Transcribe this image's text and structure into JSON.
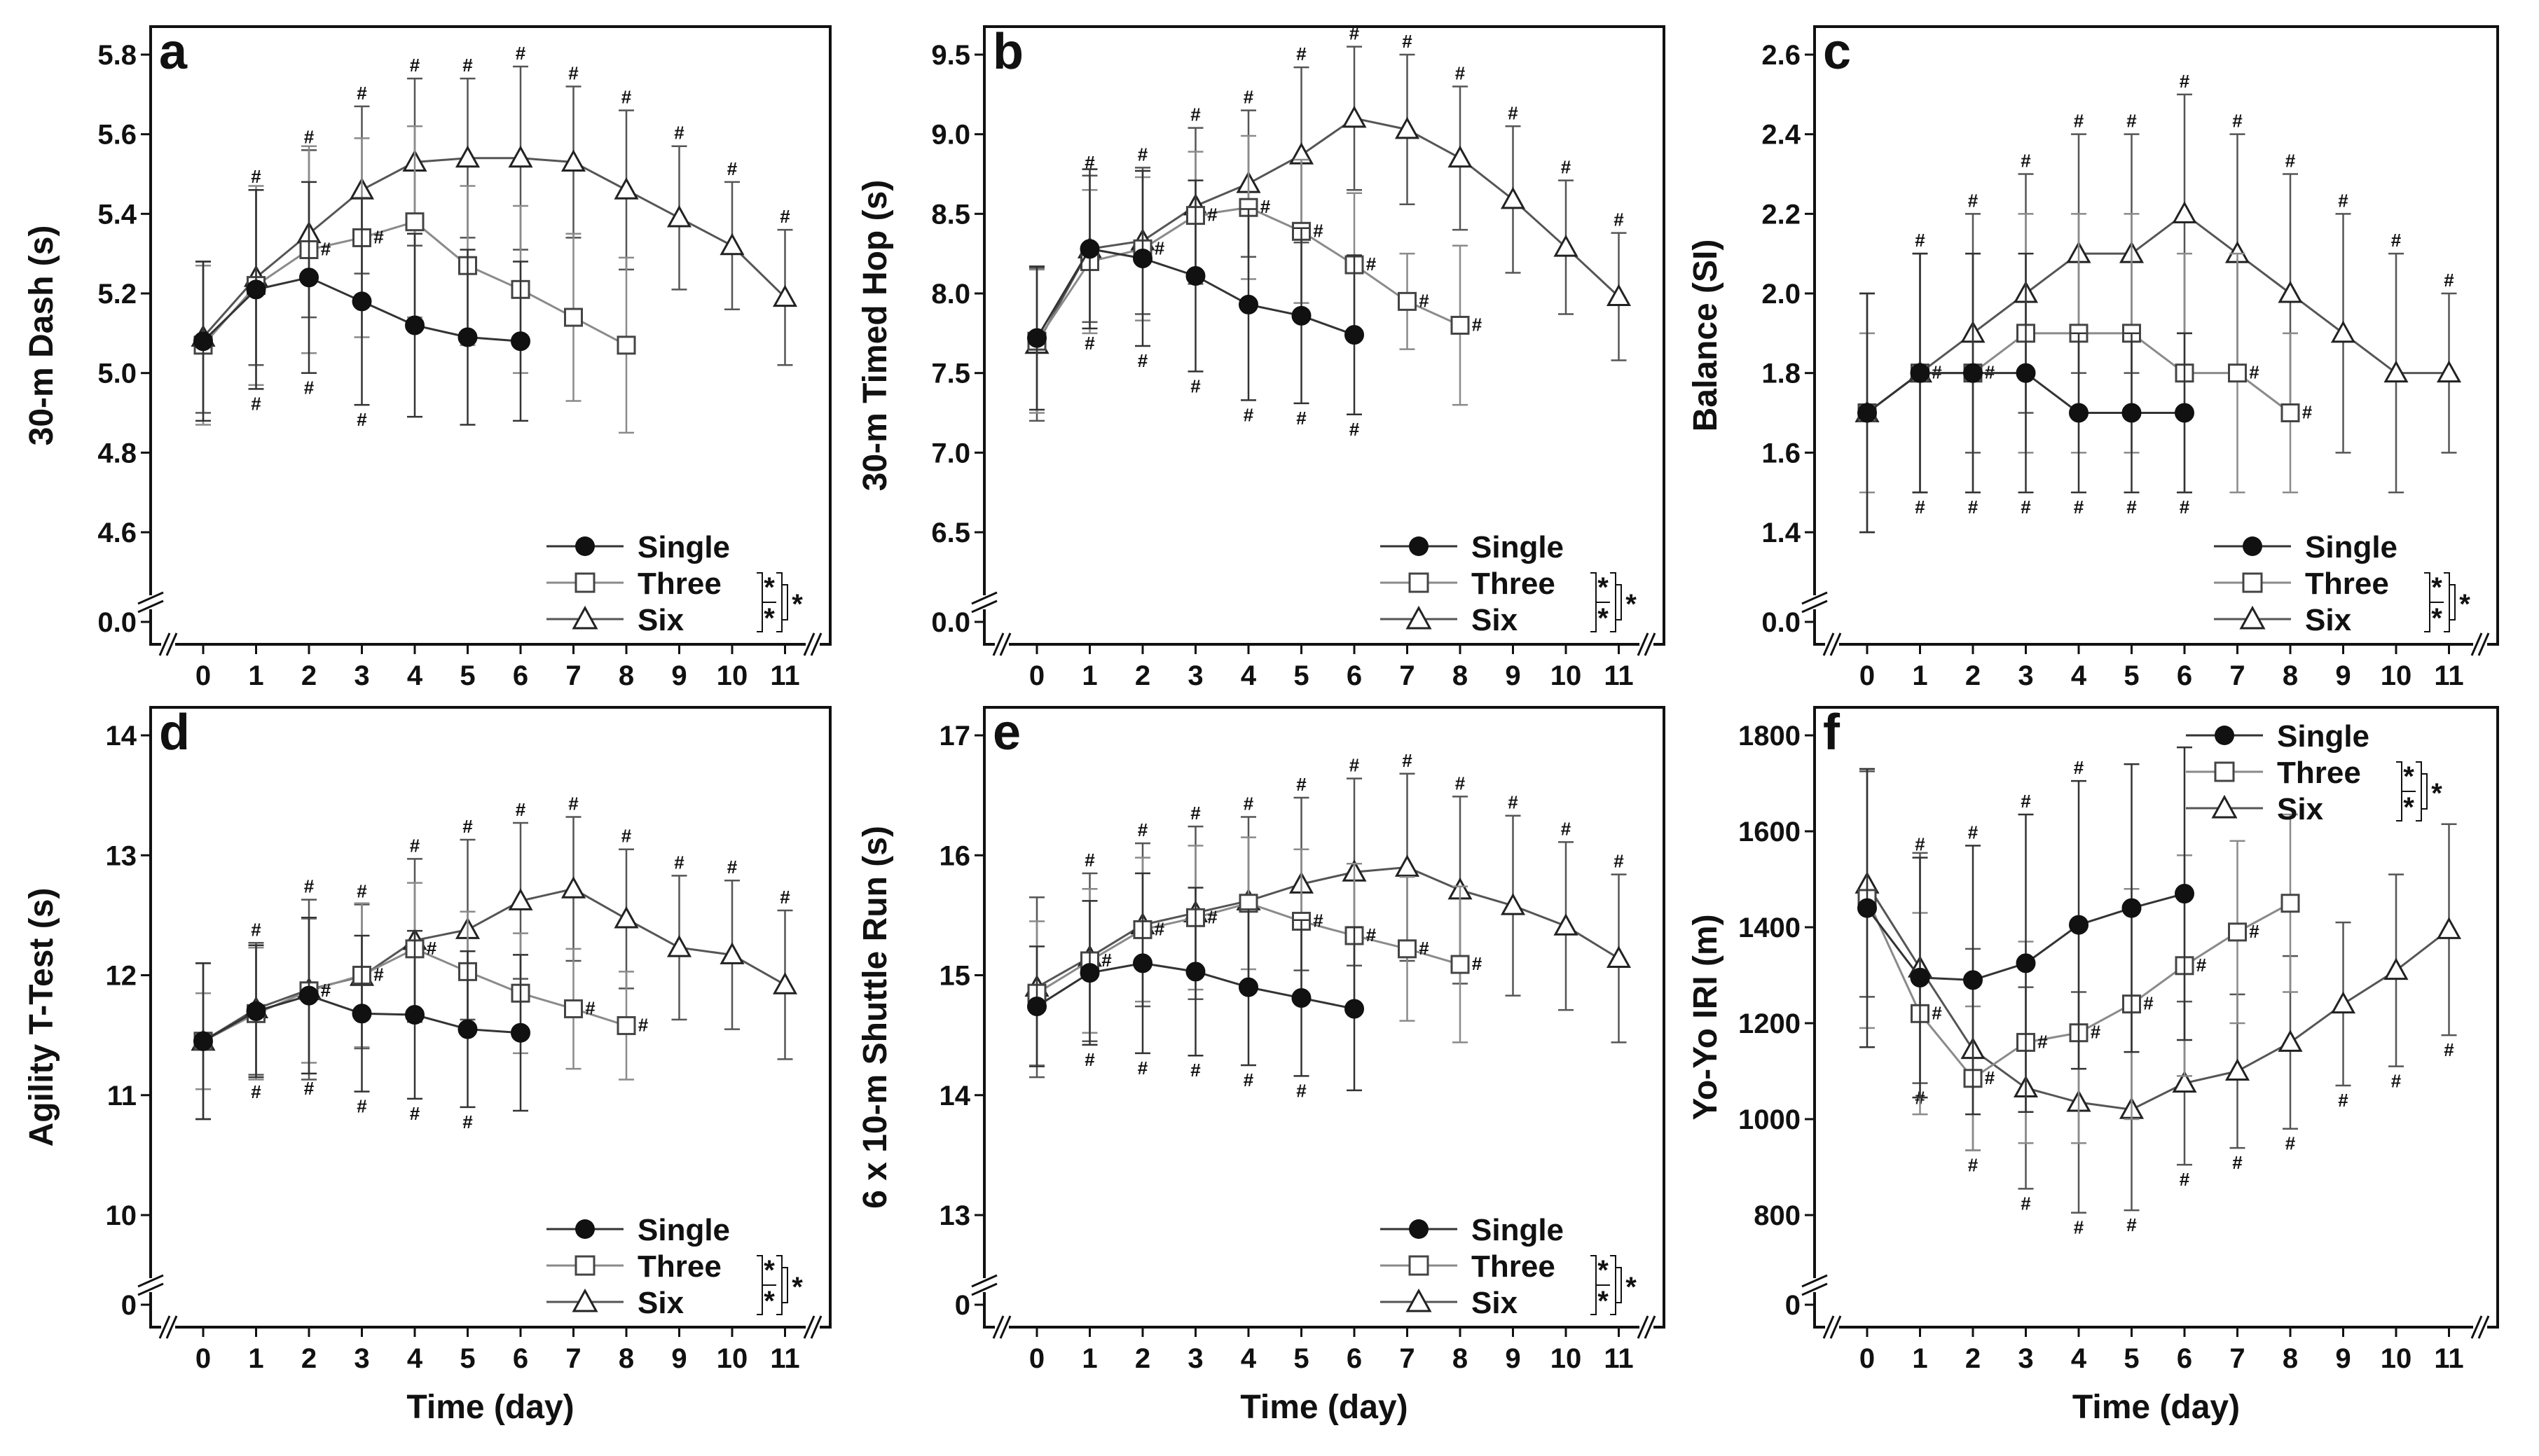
{
  "chart_data": [
    {
      "type": "line",
      "panel_label": "a",
      "ylabel": "30-m Dash (s)",
      "xlabel": "",
      "ylim": [
        4.6,
        5.8
      ],
      "yticks": [
        4.6,
        4.8,
        5.0,
        5.2,
        5.4,
        5.6,
        5.8
      ],
      "ytick_labels": [
        "4.6",
        "4.8",
        "5.0",
        "5.2",
        "5.4",
        "5.6",
        "5.8"
      ],
      "zero_label": "0.0",
      "legend_position": "bottom-right",
      "legend_stars": [
        "*",
        "*",
        "*"
      ],
      "series": [
        {
          "name": "Single",
          "marker": "filled-circle",
          "color": "#333333",
          "x": [
            0,
            1,
            2,
            3,
            4,
            5,
            6
          ],
          "values": [
            5.08,
            5.21,
            5.24,
            5.18,
            5.12,
            5.09,
            5.08
          ],
          "err": [
            0.2,
            0.25,
            0.24,
            0.26,
            0.23,
            0.22,
            0.2
          ],
          "marks": [
            "",
            "#",
            "#",
            "#",
            "",
            "",
            ""
          ],
          "mark_side": "below"
        },
        {
          "name": "Three",
          "marker": "open-square",
          "color": "#8a8a8a",
          "x": [
            0,
            1,
            2,
            3,
            4,
            5,
            6,
            7,
            8
          ],
          "values": [
            5.07,
            5.22,
            5.31,
            5.34,
            5.38,
            5.27,
            5.21,
            5.14,
            5.07
          ],
          "err": [
            0.2,
            0.25,
            0.26,
            0.25,
            0.24,
            0.2,
            0.21,
            0.21,
            0.22
          ],
          "marks": [
            "",
            "",
            "#",
            "#",
            "",
            "",
            "",
            "",
            ""
          ],
          "mark_side": "right"
        },
        {
          "name": "Six",
          "marker": "open-triangle",
          "color": "#555555",
          "x": [
            0,
            1,
            2,
            3,
            4,
            5,
            6,
            7,
            8,
            9,
            10,
            11
          ],
          "values": [
            5.09,
            5.24,
            5.35,
            5.46,
            5.53,
            5.54,
            5.54,
            5.53,
            5.46,
            5.39,
            5.32,
            5.19
          ],
          "err": [
            0.19,
            0.22,
            0.21,
            0.21,
            0.21,
            0.2,
            0.23,
            0.19,
            0.2,
            0.18,
            0.16,
            0.17
          ],
          "marks": [
            "",
            "#",
            "#",
            "#",
            "#",
            "#",
            "#",
            "#",
            "#",
            "#",
            "#",
            "#"
          ],
          "mark_side": "above"
        }
      ]
    },
    {
      "type": "line",
      "panel_label": "b",
      "ylabel": "30-m Timed Hop (s)",
      "xlabel": "",
      "ylim": [
        6.5,
        9.5
      ],
      "yticks": [
        6.5,
        7.0,
        7.5,
        8.0,
        8.5,
        9.0,
        9.5
      ],
      "ytick_labels": [
        "6.5",
        "7.0",
        "7.5",
        "8.0",
        "8.5",
        "9.0",
        "9.5"
      ],
      "zero_label": "0.0",
      "legend_position": "bottom-right",
      "legend_stars": [
        "*",
        "*",
        "*"
      ],
      "series": [
        {
          "name": "Single",
          "marker": "filled-circle",
          "color": "#333333",
          "x": [
            0,
            1,
            2,
            3,
            4,
            5,
            6
          ],
          "values": [
            7.72,
            8.28,
            8.22,
            8.11,
            7.93,
            7.86,
            7.74
          ],
          "err": [
            0.45,
            0.5,
            0.55,
            0.6,
            0.6,
            0.55,
            0.5
          ],
          "marks": [
            "",
            "#",
            "#",
            "#",
            "#",
            "#",
            "#"
          ],
          "mark_side": "below"
        },
        {
          "name": "Three",
          "marker": "open-square",
          "color": "#8a8a8a",
          "x": [
            0,
            1,
            2,
            3,
            4,
            5,
            6,
            7,
            8
          ],
          "values": [
            7.7,
            8.2,
            8.28,
            8.49,
            8.54,
            8.39,
            8.18,
            7.95,
            7.8
          ],
          "err": [
            0.45,
            0.45,
            0.45,
            0.4,
            0.45,
            0.45,
            0.45,
            0.3,
            0.5
          ],
          "marks": [
            "",
            "",
            "#",
            "#",
            "#",
            "#",
            "#",
            "#",
            "#"
          ],
          "mark_side": "right"
        },
        {
          "name": "Six",
          "marker": "open-triangle",
          "color": "#555555",
          "x": [
            0,
            1,
            2,
            3,
            4,
            5,
            6,
            7,
            8,
            9,
            10,
            11
          ],
          "values": [
            7.68,
            8.28,
            8.33,
            8.55,
            8.69,
            8.87,
            9.1,
            9.03,
            8.85,
            8.59,
            8.29,
            7.98
          ],
          "err": [
            0.48,
            0.46,
            0.46,
            0.49,
            0.46,
            0.55,
            0.45,
            0.47,
            0.45,
            0.46,
            0.42,
            0.4
          ],
          "marks": [
            "",
            "#",
            "#",
            "#",
            "#",
            "#",
            "#",
            "#",
            "#",
            "#",
            "#",
            "#"
          ],
          "mark_side": "above"
        }
      ]
    },
    {
      "type": "line",
      "panel_label": "c",
      "ylabel": "Balance (SI)",
      "xlabel": "",
      "ylim": [
        1.4,
        2.6
      ],
      "yticks": [
        1.4,
        1.6,
        1.8,
        2.0,
        2.2,
        2.4,
        2.6
      ],
      "ytick_labels": [
        "1.4",
        "1.6",
        "1.8",
        "2.0",
        "2.2",
        "2.4",
        "2.6"
      ],
      "zero_label": "0.0",
      "legend_position": "bottom-right",
      "legend_stars": [
        "*",
        "*",
        "*"
      ],
      "series": [
        {
          "name": "Single",
          "marker": "filled-circle",
          "color": "#333333",
          "x": [
            0,
            1,
            2,
            3,
            4,
            5,
            6
          ],
          "values": [
            1.7,
            1.8,
            1.8,
            1.8,
            1.7,
            1.7,
            1.7
          ],
          "err": [
            0.3,
            0.3,
            0.3,
            0.3,
            0.2,
            0.2,
            0.2
          ],
          "marks": [
            "",
            "#",
            "#",
            "#",
            "#",
            "#",
            "#"
          ],
          "mark_side": "below"
        },
        {
          "name": "Three",
          "marker": "open-square",
          "color": "#8a8a8a",
          "x": [
            0,
            1,
            2,
            3,
            4,
            5,
            6,
            7,
            8
          ],
          "values": [
            1.7,
            1.8,
            1.8,
            1.9,
            1.9,
            1.9,
            1.8,
            1.8,
            1.7
          ],
          "err": [
            0.2,
            0.3,
            0.3,
            0.3,
            0.3,
            0.3,
            0.3,
            0.3,
            0.2
          ],
          "marks": [
            "",
            "#",
            "#",
            "",
            "",
            "",
            "",
            "#",
            "#"
          ],
          "mark_side": "right"
        },
        {
          "name": "Six",
          "marker": "open-triangle",
          "color": "#555555",
          "x": [
            0,
            1,
            2,
            3,
            4,
            5,
            6,
            7,
            8,
            9,
            10,
            11
          ],
          "values": [
            1.7,
            1.8,
            1.9,
            2.0,
            2.1,
            2.1,
            2.2,
            2.1,
            2.0,
            1.9,
            1.8,
            1.8
          ],
          "err": [
            0.3,
            0.3,
            0.3,
            0.3,
            0.3,
            0.3,
            0.3,
            0.3,
            0.3,
            0.3,
            0.3,
            0.2
          ],
          "marks": [
            "",
            "#",
            "#",
            "#",
            "#",
            "#",
            "#",
            "#",
            "#",
            "#",
            "#",
            "#"
          ],
          "mark_side": "above"
        }
      ]
    },
    {
      "type": "line",
      "panel_label": "d",
      "ylabel": "Agility T-Test (s)",
      "xlabel": "Time (day)",
      "ylim": [
        10,
        14
      ],
      "yticks": [
        10,
        11,
        12,
        13,
        14
      ],
      "ytick_labels": [
        "10",
        "11",
        "12",
        "13",
        "14"
      ],
      "zero_label": "0",
      "legend_position": "bottom-right",
      "legend_stars": [
        "*",
        "*",
        "*"
      ],
      "series": [
        {
          "name": "Single",
          "marker": "filled-circle",
          "color": "#333333",
          "x": [
            0,
            1,
            2,
            3,
            4,
            5,
            6
          ],
          "values": [
            11.45,
            11.7,
            11.83,
            11.68,
            11.67,
            11.55,
            11.52
          ],
          "err": [
            0.65,
            0.55,
            0.65,
            0.65,
            0.7,
            0.65,
            0.65
          ],
          "marks": [
            "",
            "#",
            "#",
            "#",
            "#",
            "#",
            ""
          ],
          "mark_side": "below"
        },
        {
          "name": "Three",
          "marker": "open-square",
          "color": "#8a8a8a",
          "x": [
            0,
            1,
            2,
            3,
            4,
            5,
            6,
            7,
            8
          ],
          "values": [
            11.45,
            11.68,
            11.87,
            12.0,
            12.22,
            12.03,
            11.85,
            11.72,
            11.58
          ],
          "err": [
            0.4,
            0.55,
            0.6,
            0.6,
            0.55,
            0.5,
            0.5,
            0.5,
            0.45
          ],
          "marks": [
            "",
            "",
            "#",
            "#",
            "#",
            "",
            "",
            "#",
            "#"
          ],
          "mark_side": "right"
        },
        {
          "name": "Six",
          "marker": "open-triangle",
          "color": "#555555",
          "x": [
            0,
            1,
            2,
            3,
            4,
            5,
            6,
            7,
            8,
            9,
            10,
            11
          ],
          "values": [
            11.45,
            11.72,
            11.88,
            11.99,
            12.29,
            12.38,
            12.62,
            12.72,
            12.47,
            12.23,
            12.17,
            11.92
          ],
          "err": [
            0.65,
            0.55,
            0.75,
            0.6,
            0.68,
            0.75,
            0.65,
            0.6,
            0.58,
            0.6,
            0.62,
            0.62
          ],
          "marks": [
            "",
            "#",
            "#",
            "#",
            "#",
            "#",
            "#",
            "#",
            "#",
            "#",
            "#",
            "#"
          ],
          "mark_side": "above"
        }
      ]
    },
    {
      "type": "line",
      "panel_label": "e",
      "ylabel": "6 x 10-m Shuttle Run (s)",
      "xlabel": "Time (day)",
      "ylim": [
        13,
        17
      ],
      "yticks": [
        13,
        14,
        15,
        16,
        17
      ],
      "ytick_labels": [
        "13",
        "14",
        "15",
        "16",
        "17"
      ],
      "zero_label": "0",
      "legend_position": "bottom-right",
      "legend_stars": [
        "*",
        "*",
        "*"
      ],
      "series": [
        {
          "name": "Single",
          "marker": "filled-circle",
          "color": "#333333",
          "x": [
            0,
            1,
            2,
            3,
            4,
            5,
            6
          ],
          "values": [
            14.74,
            15.02,
            15.1,
            15.03,
            14.9,
            14.81,
            14.72
          ],
          "err": [
            0.5,
            0.6,
            0.75,
            0.7,
            0.65,
            0.65,
            0.68
          ],
          "marks": [
            "",
            "#",
            "#",
            "#",
            "#",
            "#",
            ""
          ],
          "mark_side": "below"
        },
        {
          "name": "Three",
          "marker": "open-square",
          "color": "#8a8a8a",
          "x": [
            0,
            1,
            2,
            3,
            4,
            5,
            6,
            7,
            8
          ],
          "values": [
            14.85,
            15.12,
            15.38,
            15.48,
            15.6,
            15.45,
            15.33,
            15.22,
            15.09
          ],
          "err": [
            0.6,
            0.6,
            0.6,
            0.6,
            0.55,
            0.6,
            0.6,
            0.6,
            0.65
          ],
          "marks": [
            "",
            "#",
            "#",
            "#",
            "",
            "#",
            "#",
            "#",
            "#"
          ],
          "mark_side": "right"
        },
        {
          "name": "Six",
          "marker": "open-triangle",
          "color": "#555555",
          "x": [
            0,
            1,
            2,
            3,
            4,
            5,
            6,
            7,
            8,
            9,
            10,
            11
          ],
          "values": [
            14.9,
            15.15,
            15.42,
            15.52,
            15.62,
            15.76,
            15.86,
            15.9,
            15.71,
            15.58,
            15.41,
            15.14
          ],
          "err": [
            0.75,
            0.7,
            0.68,
            0.72,
            0.7,
            0.72,
            0.78,
            0.78,
            0.78,
            0.75,
            0.7,
            0.7
          ],
          "marks": [
            "",
            "#",
            "#",
            "#",
            "#",
            "#",
            "#",
            "#",
            "#",
            "#",
            "#",
            "#"
          ],
          "mark_side": "above"
        }
      ]
    },
    {
      "type": "line",
      "panel_label": "f",
      "ylabel": "Yo-Yo IRI (m)",
      "xlabel": "Time (day)",
      "ylim": [
        800,
        1800
      ],
      "yticks": [
        800,
        1000,
        1200,
        1400,
        1600,
        1800
      ],
      "ytick_labels": [
        "800",
        "1000",
        "1200",
        "1400",
        "1600",
        "1800"
      ],
      "zero_label": "0",
      "legend_position": "top-right",
      "legend_stars": [
        "*",
        "*",
        "*"
      ],
      "series": [
        {
          "name": "Single",
          "marker": "filled-circle",
          "color": "#333333",
          "x": [
            0,
            1,
            2,
            3,
            4,
            5,
            6
          ],
          "values": [
            1440,
            1295,
            1290,
            1325,
            1405,
            1440,
            1470
          ],
          "err": [
            290,
            250,
            280,
            310,
            300,
            300,
            305
          ],
          "marks": [
            "",
            "#",
            "#",
            "#",
            "#",
            "",
            ""
          ],
          "mark_side": "above"
        },
        {
          "name": "Three",
          "marker": "open-square",
          "color": "#8a8a8a",
          "x": [
            0,
            1,
            2,
            3,
            4,
            5,
            6,
            7,
            8
          ],
          "values": [
            1460,
            1220,
            1085,
            1160,
            1180,
            1240,
            1320,
            1390,
            1450
          ],
          "err": [
            270,
            210,
            150,
            210,
            230,
            240,
            230,
            190,
            185
          ],
          "marks": [
            "",
            "#",
            "#",
            "#",
            "#",
            "#",
            "#",
            "#",
            ""
          ],
          "mark_side": "right"
        },
        {
          "name": "Six",
          "marker": "open-triangle",
          "color": "#555555",
          "x": [
            0,
            1,
            2,
            3,
            4,
            5,
            6,
            7,
            8,
            9,
            10,
            11
          ],
          "values": [
            1490,
            1315,
            1145,
            1065,
            1035,
            1020,
            1075,
            1100,
            1160,
            1240,
            1310,
            1395
          ],
          "err": [
            235,
            240,
            210,
            210,
            230,
            210,
            170,
            160,
            180,
            170,
            200,
            220
          ],
          "marks": [
            "",
            "#",
            "#",
            "#",
            "#",
            "#",
            "#",
            "#",
            "#",
            "#",
            "#",
            "#"
          ],
          "mark_side": "below"
        }
      ]
    }
  ],
  "x_ticks": [
    "0",
    "1",
    "2",
    "3",
    "4",
    "5",
    "6",
    "7",
    "8",
    "9",
    "10",
    "11"
  ]
}
